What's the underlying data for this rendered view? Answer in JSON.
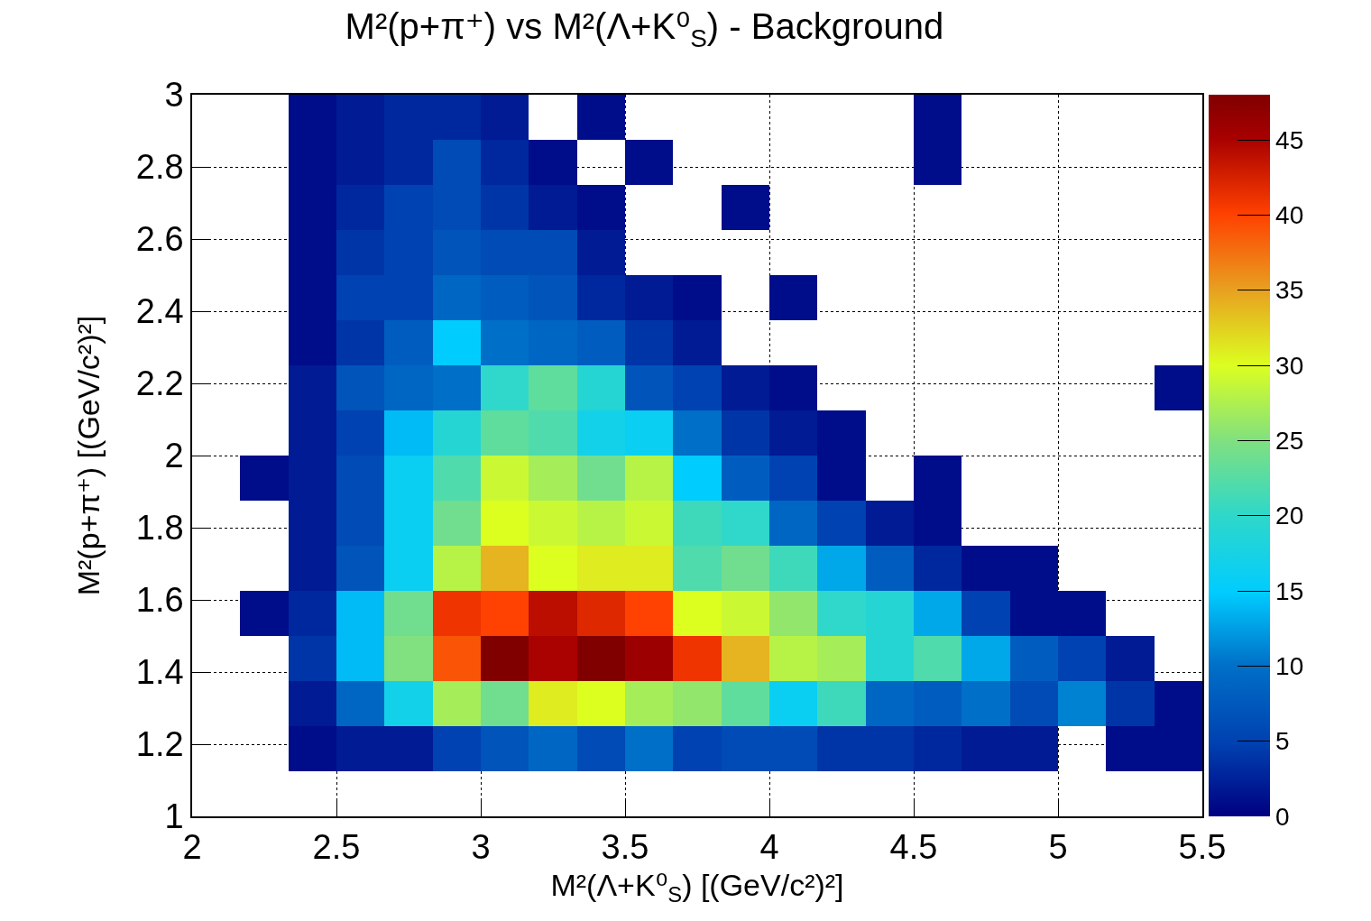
{
  "chart_data": {
    "type": "heatmap",
    "title": "M²(p+π⁺) vs M²(Λ+K⁰$_{S}$) - Background",
    "xlabel": "M²(Λ+K⁰$_{S}$) [(GeV/c²)²]",
    "ylabel": "M²(p+π⁺) [(GeV/c²)²]",
    "x": [
      2.0833,
      2.25,
      2.4167,
      2.5833,
      2.75,
      2.9167,
      3.0833,
      3.25,
      3.4167,
      3.5833,
      3.75,
      3.9167,
      4.0833,
      4.25,
      4.4167,
      4.5833,
      4.75,
      4.9167,
      5.0833,
      5.25,
      5.4167
    ],
    "y": [
      2.9375,
      2.8125,
      2.6875,
      2.5625,
      2.4375,
      2.3125,
      2.1875,
      2.0625,
      1.9375,
      1.8125,
      1.6875,
      1.5625,
      1.4375,
      1.3125,
      1.1875
    ],
    "xlim": [
      2,
      5.5
    ],
    "xticks": [
      2,
      2.5,
      3,
      3.5,
      4,
      4.5,
      5,
      5.5
    ],
    "ylim": [
      1,
      3
    ],
    "yticks": [
      1,
      1.2,
      1.4,
      1.6,
      1.8,
      2,
      2.2,
      2.4,
      2.6,
      2.8,
      3
    ],
    "clim": [
      0,
      48
    ],
    "cticks": [
      0,
      5,
      10,
      15,
      20,
      25,
      30,
      35,
      40,
      45
    ],
    "grid": true,
    "cells": [
      [
        null,
        null,
        1,
        2,
        3,
        3,
        2,
        null,
        1,
        null,
        null,
        null,
        null,
        null,
        null,
        1,
        null,
        null,
        null,
        null,
        null
      ],
      [
        null,
        null,
        1,
        2,
        3,
        6,
        3,
        1,
        null,
        1,
        null,
        null,
        null,
        null,
        null,
        1,
        null,
        null,
        null,
        null,
        null
      ],
      [
        null,
        null,
        1,
        3,
        5,
        6,
        4,
        2,
        1,
        null,
        null,
        1,
        null,
        null,
        null,
        null,
        null,
        null,
        null,
        null,
        null
      ],
      [
        null,
        null,
        1,
        4,
        5,
        7,
        6,
        6,
        2,
        null,
        null,
        null,
        null,
        null,
        null,
        null,
        null,
        null,
        null,
        null,
        null
      ],
      [
        null,
        null,
        1,
        5,
        5,
        9,
        8,
        7,
        3,
        2,
        1,
        null,
        1,
        null,
        null,
        null,
        null,
        null,
        null,
        null,
        null
      ],
      [
        null,
        null,
        1,
        4,
        8,
        15,
        10,
        9,
        8,
        4,
        2,
        null,
        null,
        null,
        null,
        null,
        null,
        null,
        null,
        null,
        null
      ],
      [
        null,
        null,
        2,
        7,
        9,
        10,
        20,
        23,
        19,
        7,
        5,
        2,
        1,
        null,
        null,
        null,
        null,
        null,
        null,
        null,
        1
      ],
      [
        null,
        null,
        2,
        5,
        14,
        19,
        23,
        22,
        17,
        16,
        10,
        4,
        2,
        1,
        null,
        null,
        null,
        null,
        null,
        null,
        null
      ],
      [
        null,
        1,
        2,
        6,
        16,
        22,
        29,
        27,
        24,
        28,
        15,
        8,
        5,
        1,
        null,
        1,
        null,
        null,
        null,
        null,
        null
      ],
      [
        null,
        null,
        2,
        6,
        16,
        24,
        30,
        29,
        28,
        29,
        21,
        20,
        9,
        5,
        2,
        1,
        null,
        null,
        null,
        null,
        null
      ],
      [
        null,
        null,
        2,
        7,
        16,
        28,
        34,
        30,
        31,
        31,
        22,
        24,
        21,
        13,
        8,
        3,
        1,
        1,
        null,
        null,
        null
      ],
      [
        null,
        1,
        3,
        14,
        24,
        41,
        40,
        44,
        42,
        40,
        30,
        29,
        26,
        20,
        19,
        13,
        5,
        1,
        1,
        null,
        null
      ],
      [
        null,
        null,
        4,
        14,
        25,
        39,
        48,
        45,
        48,
        46,
        41,
        34,
        28,
        27,
        19,
        22,
        13,
        8,
        5,
        2,
        null
      ],
      [
        null,
        null,
        2,
        9,
        17,
        27,
        24,
        31,
        30,
        27,
        26,
        23,
        16,
        21,
        9,
        8,
        10,
        6,
        11,
        4,
        1
      ],
      [
        null,
        null,
        1,
        2,
        2,
        5,
        7,
        9,
        6,
        10,
        5,
        6,
        6,
        4,
        4,
        3,
        2,
        2,
        null,
        1,
        1
      ]
    ]
  }
}
